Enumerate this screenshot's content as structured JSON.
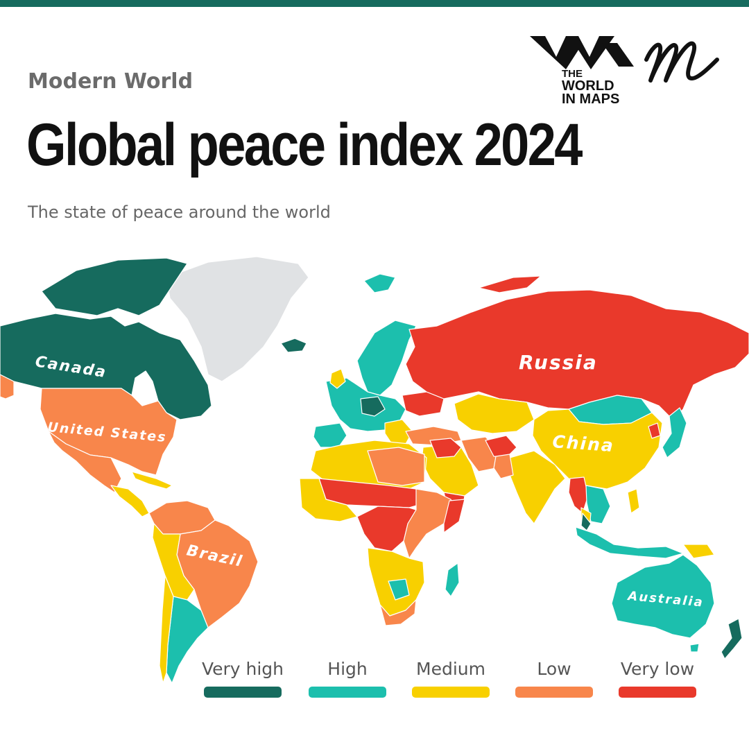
{
  "header": {
    "kicker": "Modern World",
    "title": "Global peace index 2024",
    "subtitle": "The state of peace around the world"
  },
  "logo": {
    "line1": "THE",
    "line2": "WORLD",
    "line3": "IN MAPS"
  },
  "colors": {
    "very_high": "#166b5e",
    "high": "#1cbfad",
    "medium": "#f8d000",
    "low": "#f8864b",
    "very_low": "#e9392b",
    "no_data": "#e0e2e4"
  },
  "map_labels": {
    "canada": "Canada",
    "united_states": "United States",
    "brazil": "Brazil",
    "russia": "Russia",
    "china": "China",
    "australia": "Australia"
  },
  "legend": [
    {
      "label": "Very high",
      "color": "#166b5e"
    },
    {
      "label": "High",
      "color": "#1cbfad"
    },
    {
      "label": "Medium",
      "color": "#f8d000"
    },
    {
      "label": "Low",
      "color": "#f8864b"
    },
    {
      "label": "Very low",
      "color": "#e9392b"
    }
  ]
}
